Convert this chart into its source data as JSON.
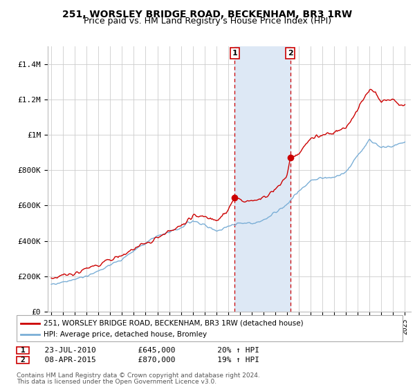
{
  "title": "251, WORSLEY BRIDGE ROAD, BECKENHAM, BR3 1RW",
  "subtitle": "Price paid vs. HM Land Registry's House Price Index (HPI)",
  "title_fontsize": 10,
  "subtitle_fontsize": 9,
  "ylabel_ticks": [
    "£0",
    "£200K",
    "£400K",
    "£600K",
    "£800K",
    "£1M",
    "£1.2M",
    "£1.4M"
  ],
  "ytick_values": [
    0,
    200000,
    400000,
    600000,
    800000,
    1000000,
    1200000,
    1400000
  ],
  "ylim": [
    0,
    1500000
  ],
  "xlim_start": 1994.7,
  "xlim_end": 2025.5,
  "sale1_year": 2010.55,
  "sale1_price": 645000,
  "sale1_label": "1",
  "sale1_date": "23-JUL-2010",
  "sale1_amount": "£645,000",
  "sale1_hpi": "20% ↑ HPI",
  "sale2_year": 2015.27,
  "sale2_price": 870000,
  "sale2_label": "2",
  "sale2_date": "08-APR-2015",
  "sale2_amount": "£870,000",
  "sale2_hpi": "19% ↑ HPI",
  "line_color_red": "#cc0000",
  "line_color_blue": "#7aaed6",
  "vline_color": "#cc0000",
  "shade_color": "#dde8f5",
  "marker_box_color": "#cc0000",
  "legend_line1": "251, WORSLEY BRIDGE ROAD, BECKENHAM, BR3 1RW (detached house)",
  "legend_line2": "HPI: Average price, detached house, Bromley",
  "footer1": "Contains HM Land Registry data © Crown copyright and database right 2024.",
  "footer2": "This data is licensed under the Open Government Licence v3.0.",
  "background_color": "#ffffff",
  "plot_bg_color": "#ffffff",
  "grid_color": "#cccccc"
}
